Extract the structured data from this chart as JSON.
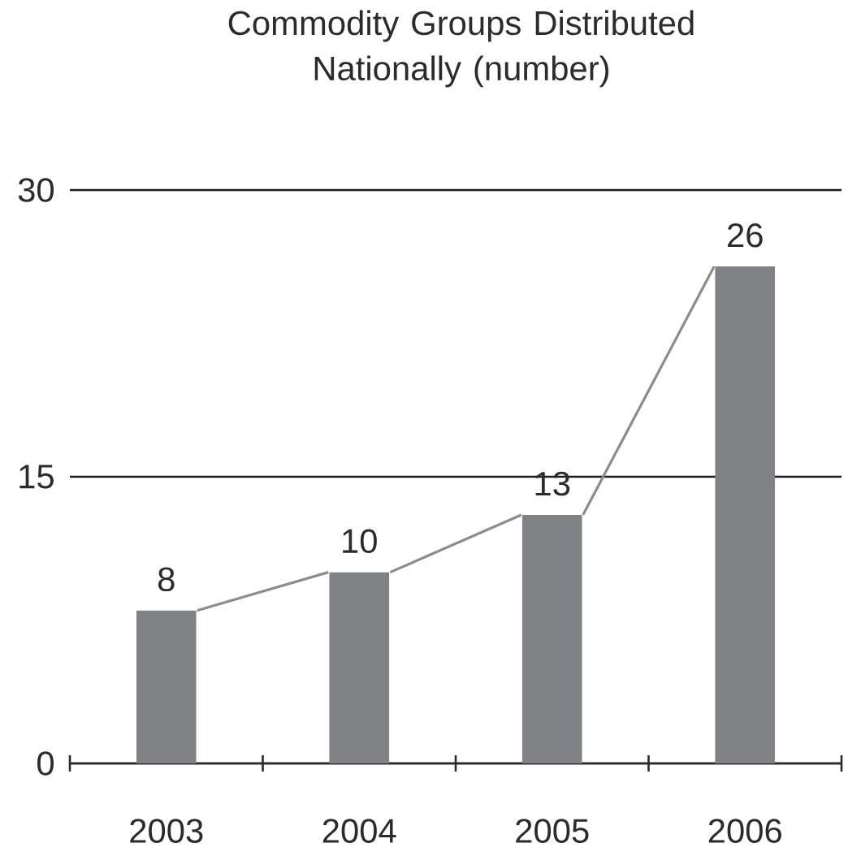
{
  "chart_data": {
    "type": "bar",
    "title": "Commodity Groups Distributed Nationally (number)",
    "x": [
      2003,
      2004,
      2005,
      2006
    ],
    "series": [
      {
        "values": [
          8,
          10,
          13,
          26
        ],
        "value_labels": [
          "8",
          "10",
          "13",
          "26"
        ],
        "color": "#818286"
      },
      {
        "type": "line",
        "x": [
          2003.16,
          2003.84,
          2004,
          2004.16,
          2004.84,
          2005,
          2005.16,
          2005.84
        ],
        "values": [
          8,
          10,
          null,
          10,
          13,
          null,
          13,
          26
        ],
        "color": "#8c8c8c"
      }
    ],
    "xlim": [
      2002.5,
      2006.5
    ],
    "xticks": [
      {
        "value": 2002.5,
        "label": null
      },
      2003,
      {
        "value": 2003.5,
        "label": null
      },
      2004,
      {
        "value": 2004.5,
        "label": null
      },
      2005,
      {
        "value": 2005.5,
        "label": null
      },
      2006,
      {
        "value": 2006.5,
        "label": null
      }
    ],
    "ylim": [
      0,
      30
    ],
    "yticks": [
      0,
      15,
      30
    ],
    "grid": "y"
  }
}
